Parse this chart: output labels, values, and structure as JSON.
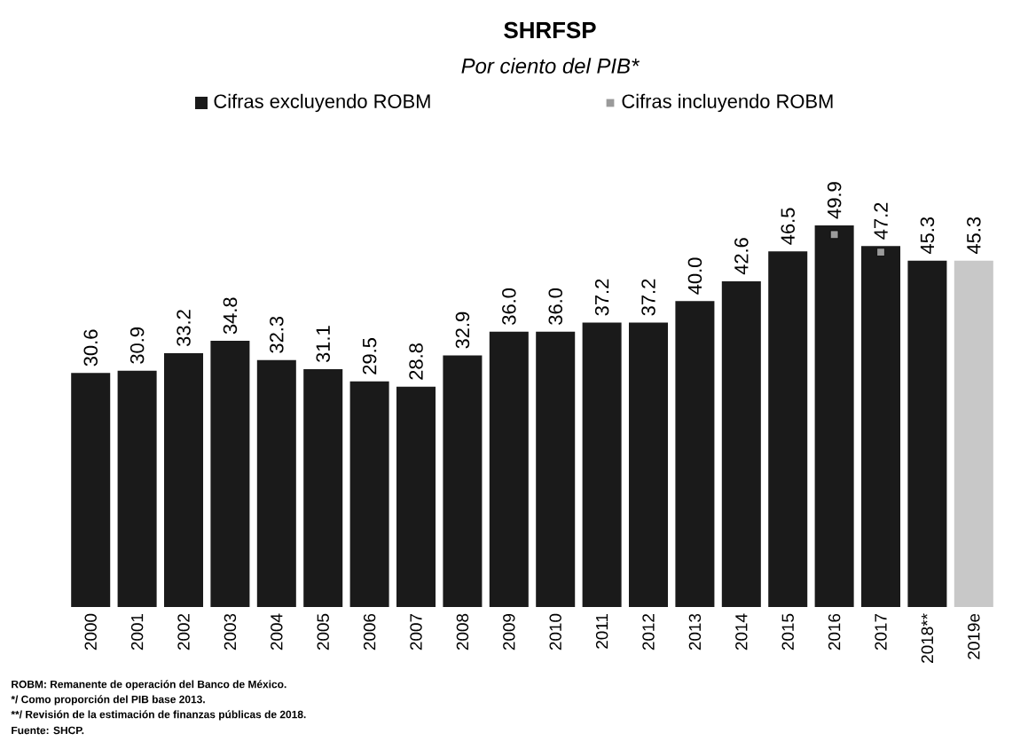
{
  "chart_data": {
    "type": "bar",
    "title": "SHRFSP",
    "subtitle": "Por ciento del PIB*",
    "categories": [
      "2000",
      "2001",
      "2002",
      "2003",
      "2004",
      "2005",
      "2006",
      "2007",
      "2008",
      "2009",
      "2010",
      "2011",
      "2012",
      "2013",
      "2014",
      "2015",
      "2016",
      "2017",
      "2018**",
      "2019e"
    ],
    "series": [
      {
        "name": "Cifras excluyendo ROBM",
        "color": "#1a1a1a",
        "colors": [
          "#1a1a1a",
          "#1a1a1a",
          "#1a1a1a",
          "#1a1a1a",
          "#1a1a1a",
          "#1a1a1a",
          "#1a1a1a",
          "#1a1a1a",
          "#1a1a1a",
          "#1a1a1a",
          "#1a1a1a",
          "#1a1a1a",
          "#1a1a1a",
          "#1a1a1a",
          "#1a1a1a",
          "#1a1a1a",
          "#1a1a1a",
          "#1a1a1a",
          "#1a1a1a",
          "#c8c8c8"
        ],
        "values": [
          30.6,
          30.9,
          33.2,
          34.8,
          32.3,
          31.1,
          29.5,
          28.8,
          32.9,
          36.0,
          36.0,
          37.2,
          37.2,
          40.0,
          42.6,
          46.5,
          49.9,
          47.2,
          45.3,
          45.3
        ],
        "value_labels": [
          "30.6",
          "30.9",
          "33.2",
          "34.8",
          "32.3",
          "31.1",
          "29.5",
          "28.8",
          "32.9",
          "36.0",
          "36.0",
          "37.2",
          "37.2",
          "40.0",
          "42.6",
          "46.5",
          "49.9",
          "47.2",
          "45.3",
          "45.3"
        ]
      },
      {
        "name": "Cifras incluyendo ROBM",
        "type": "scatter",
        "marker": "square",
        "color": "#9a9a9a",
        "values": [
          null,
          null,
          null,
          null,
          null,
          null,
          null,
          null,
          null,
          null,
          null,
          null,
          null,
          null,
          null,
          null,
          48.7,
          46.4,
          null,
          null
        ]
      }
    ],
    "legend": "top",
    "annotations": [
      "ROBM: Remanente de operación del Banco de México.",
      "*/ Como proporción del PIB base 2013.",
      "**/ Revisión de la estimación de finanzas públicas de 2018.",
      "Fuente: SHCP."
    ]
  }
}
